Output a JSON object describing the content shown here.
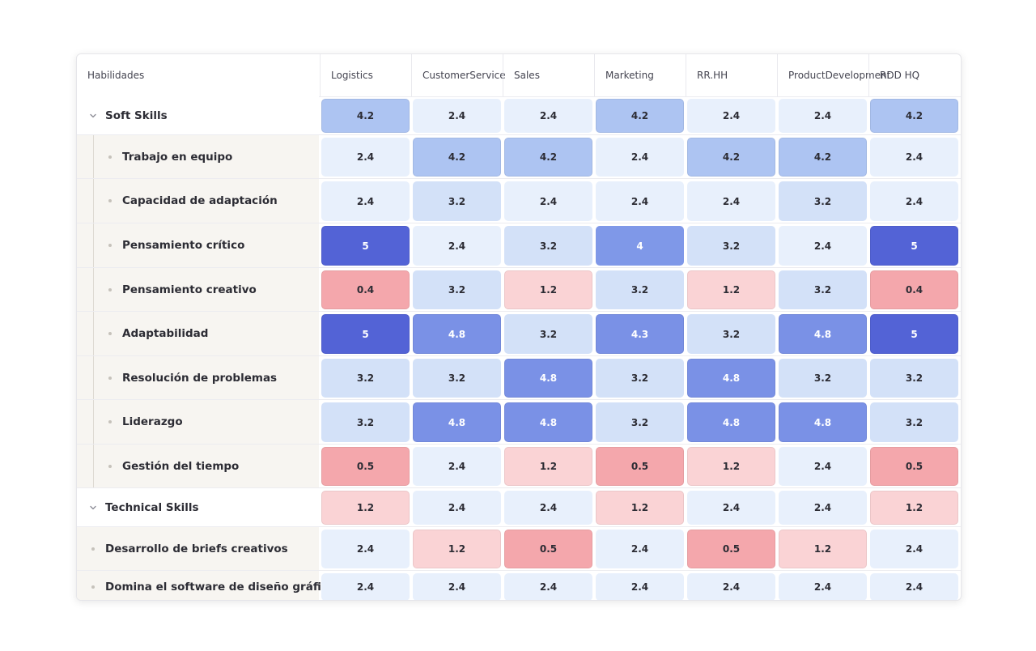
{
  "table": {
    "corner_label": "Habilidades",
    "columns": [
      [
        "Logistics"
      ],
      [
        "Customer",
        "Service"
      ],
      [
        "Sales"
      ],
      [
        "Marketing"
      ],
      [
        "RR.HH"
      ],
      [
        "Product",
        "Development"
      ],
      [
        "RDD HQ"
      ]
    ],
    "rows": [
      {
        "kind": "cat",
        "label": "Soft Skills",
        "values": [
          "4.2",
          "2.4",
          "2.4",
          "4.2",
          "2.4",
          "2.4",
          "4.2"
        ]
      },
      {
        "kind": "sub",
        "label": "Trabajo en equipo",
        "values": [
          "2.4",
          "4.2",
          "4.2",
          "2.4",
          "4.2",
          "4.2",
          "2.4"
        ]
      },
      {
        "kind": "sub",
        "label": "Capacidad de adaptación",
        "values": [
          "2.4",
          "3.2",
          "2.4",
          "2.4",
          "2.4",
          "3.2",
          "2.4"
        ]
      },
      {
        "kind": "sub",
        "label": "Pensamiento crítico",
        "values": [
          "5",
          "2.4",
          "3.2",
          "4",
          "3.2",
          "2.4",
          "5"
        ]
      },
      {
        "kind": "sub",
        "label": "Pensamiento creativo",
        "values": [
          "0.4",
          "3.2",
          "1.2",
          "3.2",
          "1.2",
          "3.2",
          "0.4"
        ]
      },
      {
        "kind": "sub",
        "label": "Adaptabilidad",
        "values": [
          "5",
          "4.8",
          "3.2",
          "4.3",
          "3.2",
          "4.8",
          "5"
        ]
      },
      {
        "kind": "sub",
        "label": "Resolución de problemas",
        "values": [
          "3.2",
          "3.2",
          "4.8",
          "3.2",
          "4.8",
          "3.2",
          "3.2"
        ]
      },
      {
        "kind": "sub",
        "label": "Liderazgo",
        "values": [
          "3.2",
          "4.8",
          "4.8",
          "3.2",
          "4.8",
          "4.8",
          "3.2"
        ]
      },
      {
        "kind": "sub",
        "label": "Gestión del tiempo",
        "values": [
          "0.5",
          "2.4",
          "1.2",
          "0.5",
          "1.2",
          "2.4",
          "0.5"
        ]
      },
      {
        "kind": "cat",
        "label": "Technical Skills",
        "values": [
          "1.2",
          "2.4",
          "2.4",
          "1.2",
          "2.4",
          "2.4",
          "1.2"
        ]
      },
      {
        "kind": "top",
        "label": "Desarrollo de briefs creativos",
        "values": [
          "2.4",
          "1.2",
          "0.5",
          "2.4",
          "0.5",
          "1.2",
          "2.4"
        ]
      },
      {
        "kind": "top",
        "label": "Domina el software de diseño gráfico",
        "values": [
          "2.4",
          "2.4",
          "2.4",
          "2.4",
          "2.4",
          "2.4",
          "2.4"
        ]
      }
    ]
  },
  "colors": {
    "v5": "#5363d6",
    "v4_8": "#7a91e6",
    "v4_3": "#7a91e6",
    "v4": "#7f98e8",
    "v4_2": "#adc4f2",
    "v3_2": "#d3e1f8",
    "v2_4": "#e8f0fc",
    "v1_2": "#fad3d5",
    "v0_5": "#f4a7ac",
    "v0_4": "#f4a7ac"
  }
}
